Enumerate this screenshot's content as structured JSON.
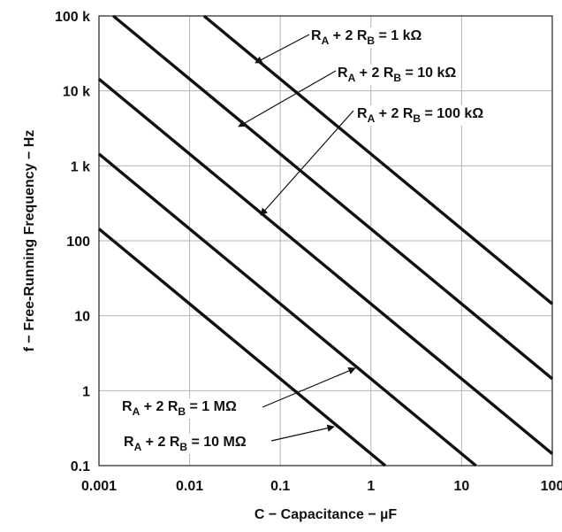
{
  "chart_data": {
    "type": "line",
    "xlabel": "C − Capacitance − µF",
    "ylabel": "f − Free-Running Frequency − Hz",
    "xscale": "log",
    "yscale": "log",
    "xlim": [
      0.001,
      100
    ],
    "ylim": [
      0.1,
      100000
    ],
    "grid": true,
    "x_ticks": [
      {
        "value": 0.001,
        "label": "0.001"
      },
      {
        "value": 0.01,
        "label": "0.01"
      },
      {
        "value": 0.1,
        "label": "0.1"
      },
      {
        "value": 1,
        "label": "1"
      },
      {
        "value": 10,
        "label": "10"
      },
      {
        "value": 100,
        "label": "100"
      }
    ],
    "y_ticks": [
      {
        "value": 0.1,
        "label": "0.1"
      },
      {
        "value": 1,
        "label": "1"
      },
      {
        "value": 10,
        "label": "10"
      },
      {
        "value": 100,
        "label": "100"
      },
      {
        "value": 1000,
        "label": "1 k"
      },
      {
        "value": 10000,
        "label": "10 k"
      },
      {
        "value": 100000,
        "label": "100 k"
      }
    ],
    "series": [
      {
        "name": "RA + 2 RB = 1 kΩ",
        "x": [
          0.0144,
          100
        ],
        "y": [
          100000,
          14.4
        ]
      },
      {
        "name": "RA + 2 RB = 10 kΩ",
        "x": [
          0.00144,
          100
        ],
        "y": [
          100000,
          1.44
        ]
      },
      {
        "name": "RA + 2 RB = 100 kΩ",
        "x": [
          0.001,
          100
        ],
        "y": [
          14400,
          0.144
        ]
      },
      {
        "name": "RA + 2 RB = 1 MΩ",
        "x": [
          0.001,
          14.4
        ],
        "y": [
          1440,
          0.1
        ]
      },
      {
        "name": "RA + 2 RB = 10 MΩ",
        "x": [
          0.001,
          1.44
        ],
        "y": [
          144,
          0.1
        ]
      }
    ],
    "annotations": [
      {
        "main": "R",
        "sub1": "A",
        "mid": " + 2 R",
        "sub2": "B",
        "tail": " = 1 kΩ",
        "target": {
          "x": 0.04,
          "y": 36
        },
        "arrow_to": {
          "x": 0.03,
          "y": 48000
        }
      },
      {
        "main": "R",
        "sub1": "A",
        "mid": " + 2 R",
        "sub2": "B",
        "tail": " = 10 kΩ",
        "target": {
          "x": 0.06,
          "y": 2400
        },
        "arrow_to": {
          "x": 0.03,
          "y": 4800
        }
      },
      {
        "main": "R",
        "sub1": "A",
        "mid": " + 2 R",
        "sub2": "B",
        "tail": " = 100 kΩ",
        "target": {
          "x": 0.06,
          "y": 240
        },
        "arrow_to": {
          "x": 0.03,
          "y": 480
        }
      },
      {
        "main": "R",
        "sub1": "A",
        "mid": " + 2 R",
        "sub2": "B",
        "tail": " = 1 MΩ",
        "target": {
          "x": 0.8,
          "y": 1.8
        },
        "arrow_to": {
          "x": 0.8,
          "y": 1.8
        }
      },
      {
        "main": "R",
        "sub1": "A",
        "mid": " + 2 R",
        "sub2": "B",
        "tail": " = 10 MΩ",
        "target": {
          "x": 0.6,
          "y": 0.24
        },
        "arrow_to": {
          "x": 0.6,
          "y": 0.24
        }
      }
    ]
  }
}
